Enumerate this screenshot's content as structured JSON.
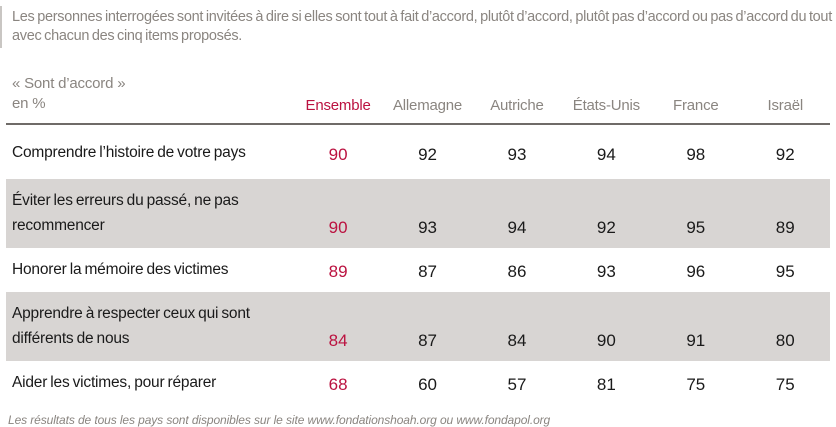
{
  "intro": "Les personnes interrogées sont invitées à dire si elles sont tout à fait d’accord, plutôt d’accord, plutôt pas d’accord ou pas d’accord du tout avec chacun des cinq items proposés.",
  "table": {
    "corner_label_line1": "« Sont d’accord »",
    "corner_label_line2": "en %",
    "columns": [
      "Ensemble",
      "Allemagne",
      "Autriche",
      "États-Unis",
      "France",
      "Israël"
    ],
    "rows": [
      {
        "label": "Comprendre l’histoire de votre pays",
        "values": [
          90,
          92,
          93,
          94,
          98,
          92
        ]
      },
      {
        "label": "Éviter les erreurs du passé, ne pas recommencer",
        "values": [
          90,
          93,
          94,
          92,
          95,
          89
        ]
      },
      {
        "label": "Honorer la mémoire des victimes",
        "values": [
          89,
          87,
          86,
          93,
          96,
          95
        ]
      },
      {
        "label": "Apprendre à respecter ceux qui sont différents de nous",
        "values": [
          84,
          87,
          84,
          90,
          91,
          80
        ]
      },
      {
        "label": "Aider les victimes, pour réparer",
        "values": [
          68,
          60,
          57,
          81,
          75,
          75
        ]
      }
    ]
  },
  "footer": "Les résultats de tous les pays sont disponibles sur le site www.fondationshoah.org ou www.fondapol.org",
  "colors": {
    "accent_red": "#bb1240",
    "band_gray": "#d8d5d3",
    "text_gray": "#8a8580",
    "text_black": "#1a1a1a",
    "divider": "#6f6b68"
  },
  "chart_data": {
    "type": "table",
    "title": "« Sont d’accord » en %",
    "categories": [
      "Comprendre l’histoire de votre pays",
      "Éviter les erreurs du passé, ne pas recommencer",
      "Honorer la mémoire des victimes",
      "Apprendre à respecter ceux qui sont différents de nous",
      "Aider les victimes, pour réparer"
    ],
    "series": [
      {
        "name": "Ensemble",
        "values": [
          90,
          90,
          89,
          84,
          68
        ]
      },
      {
        "name": "Allemagne",
        "values": [
          92,
          93,
          87,
          87,
          60
        ]
      },
      {
        "name": "Autriche",
        "values": [
          93,
          94,
          86,
          84,
          57
        ]
      },
      {
        "name": "États-Unis",
        "values": [
          94,
          92,
          93,
          90,
          81
        ]
      },
      {
        "name": "France",
        "values": [
          98,
          95,
          96,
          91,
          75
        ]
      },
      {
        "name": "Israël",
        "values": [
          92,
          89,
          95,
          80,
          75
        ]
      }
    ],
    "unit": "%",
    "note": "Les résultats de tous les pays sont disponibles sur le site www.fondationshoah.org ou www.fondapol.org"
  }
}
